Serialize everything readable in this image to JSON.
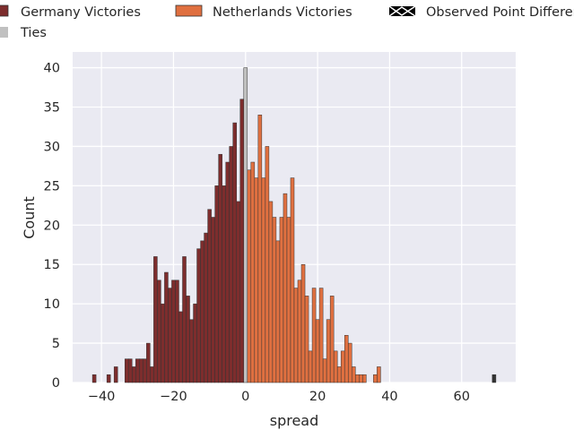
{
  "chart_data": {
    "type": "bar",
    "title": "",
    "xlabel": "spread",
    "ylabel": "Count",
    "xlim": [
      -48,
      75
    ],
    "ylim": [
      0,
      42
    ],
    "xticks": [
      -40,
      -20,
      0,
      20,
      40,
      60
    ],
    "yticks": [
      0,
      5,
      10,
      15,
      20,
      25,
      30,
      35,
      40
    ],
    "grid": true,
    "legend_placement": "top",
    "bin_width": 1,
    "series": [
      {
        "name": "Germany Victories",
        "color": "#7d2d2d",
        "x": [
          -42,
          -38,
          -36,
          -33,
          -32,
          -31,
          -30,
          -29,
          -28,
          -27,
          -26,
          -25,
          -24,
          -23,
          -22,
          -21,
          -20,
          -19,
          -18,
          -17,
          -16,
          -15,
          -14,
          -13,
          -12,
          -11,
          -10,
          -9,
          -8,
          -7,
          -6,
          -5,
          -4,
          -3,
          -2,
          -1
        ],
        "values": [
          1,
          1,
          2,
          3,
          3,
          2,
          3,
          3,
          3,
          5,
          2,
          16,
          13,
          10,
          14,
          12,
          13,
          13,
          9,
          16,
          11,
          8,
          10,
          17,
          18,
          19,
          22,
          21,
          25,
          29,
          25,
          28,
          30,
          33,
          23,
          36
        ]
      },
      {
        "name": "Ties",
        "color": "#c0c0c0",
        "x": [
          0
        ],
        "values": [
          40
        ]
      },
      {
        "name": "Netherlands Victories",
        "color": "#e07040",
        "x": [
          1,
          2,
          3,
          4,
          5,
          6,
          7,
          8,
          9,
          10,
          11,
          12,
          13,
          14,
          15,
          16,
          17,
          18,
          19,
          20,
          21,
          22,
          23,
          24,
          25,
          26,
          27,
          28,
          29,
          30,
          31,
          32,
          33,
          36,
          37
        ],
        "values": [
          27,
          28,
          26,
          34,
          26,
          30,
          23,
          21,
          18,
          21,
          24,
          21,
          26,
          12,
          13,
          15,
          11,
          4,
          12,
          8,
          12,
          3,
          8,
          11,
          4,
          2,
          4,
          6,
          5,
          2,
          1,
          1,
          1,
          1,
          2
        ]
      },
      {
        "name": "Observed Point Difference",
        "color": "#333333",
        "x": [
          69
        ],
        "values": [
          1
        ]
      }
    ]
  }
}
